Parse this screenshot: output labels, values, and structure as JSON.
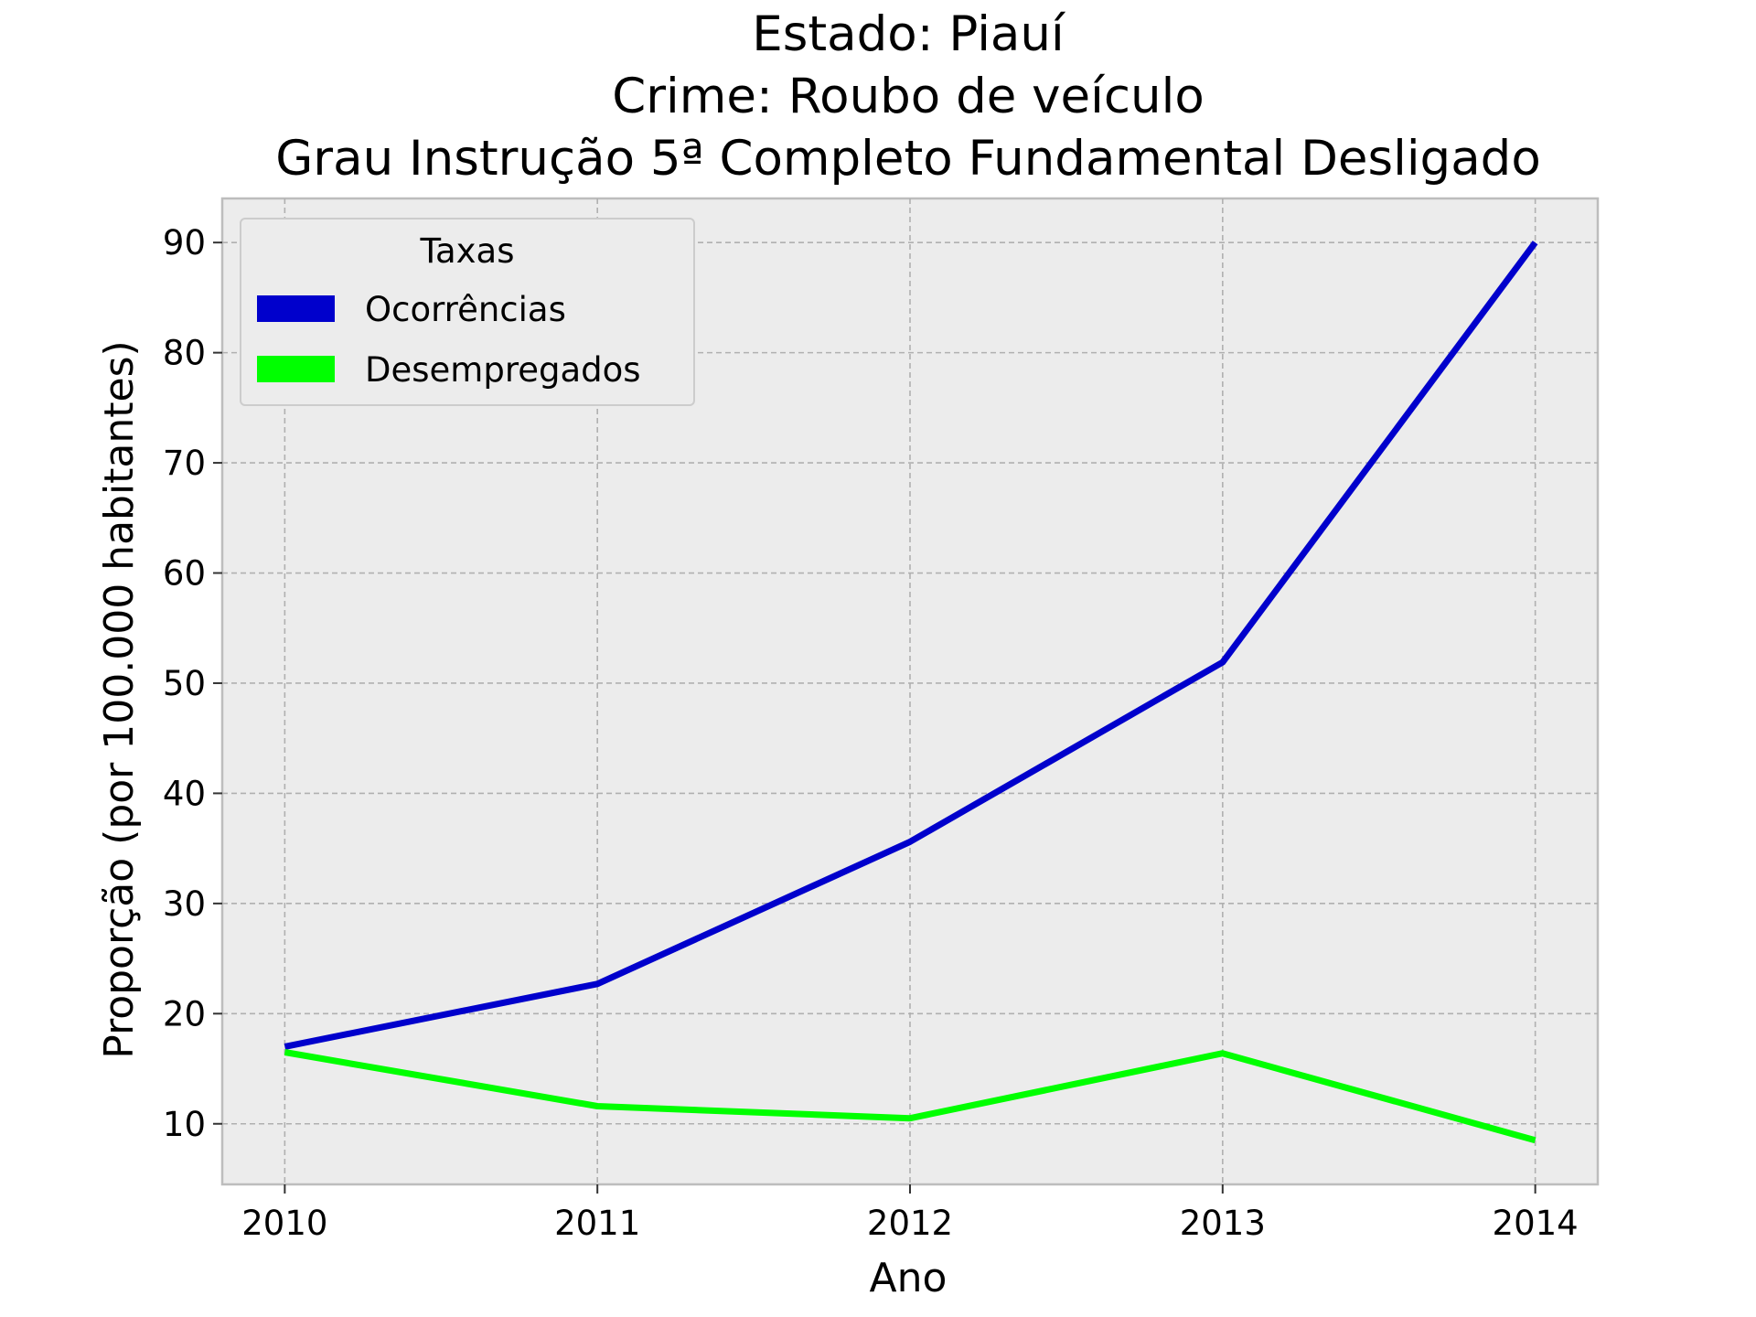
{
  "chart_data": {
    "type": "line",
    "title_lines": [
      "Estado: Piauí",
      "Crime: Roubo de veículo",
      "Grau Instrução  5ª Completo Fundamental   Desligado"
    ],
    "xlabel": "Ano",
    "ylabel": "Proporção (por 100.000 habitantes)",
    "x": [
      2010,
      2011,
      2012,
      2013,
      2014
    ],
    "x_tick_labels": [
      "2010",
      "2011",
      "2012",
      "2013",
      "2014"
    ],
    "xlim": [
      2009.8,
      2014.2
    ],
    "ylim": [
      4.5,
      94
    ],
    "y_ticks": [
      10,
      20,
      30,
      40,
      50,
      60,
      70,
      80,
      90
    ],
    "y_tick_labels": [
      "10",
      "20",
      "30",
      "40",
      "50",
      "60",
      "70",
      "80",
      "90"
    ],
    "grid": true,
    "legend": {
      "title": "Taxas",
      "placement": "upper-left"
    },
    "series": [
      {
        "name": "Ocorrências",
        "color": "#0000cc",
        "values": [
          17.0,
          22.7,
          35.6,
          51.9,
          90.0
        ]
      },
      {
        "name": "Desempregados",
        "color": "#00ff00",
        "values": [
          16.5,
          11.6,
          10.5,
          16.4,
          8.5
        ]
      }
    ]
  }
}
